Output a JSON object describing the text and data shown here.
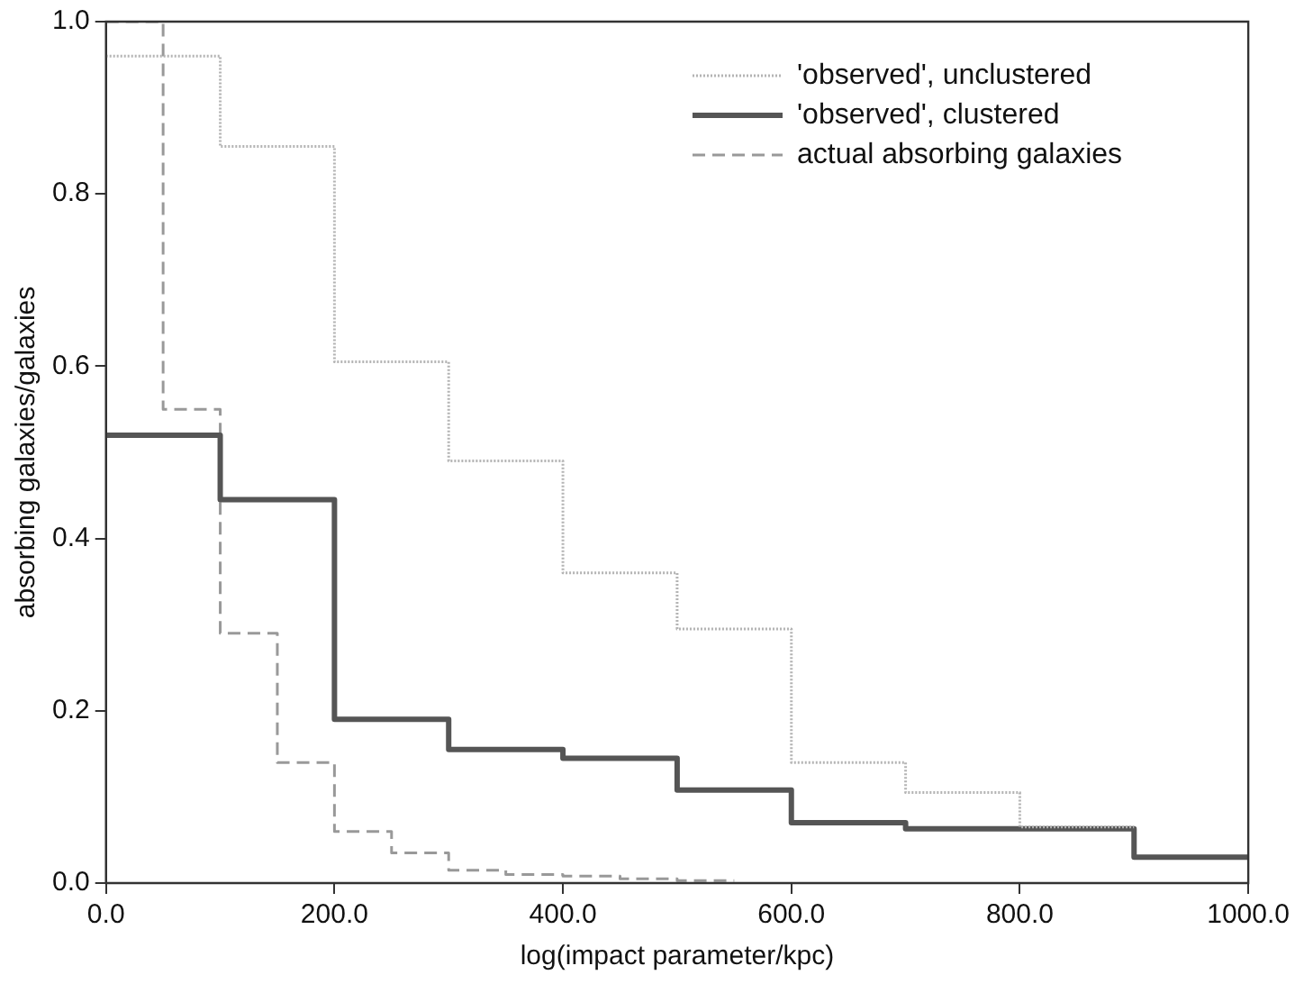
{
  "chart_data": {
    "type": "step",
    "xlabel": "log(impact parameter/kpc)",
    "ylabel": "absorbing galaxies/galaxies",
    "xlim": [
      0,
      1000
    ],
    "ylim": [
      0,
      1
    ],
    "xticks": [
      {
        "value": 0,
        "label": "0.0"
      },
      {
        "value": 200,
        "label": "200.0"
      },
      {
        "value": 400,
        "label": "400.0"
      },
      {
        "value": 600,
        "label": "600.0"
      },
      {
        "value": 800,
        "label": "800.0"
      },
      {
        "value": 1000,
        "label": "1000.0"
      }
    ],
    "yticks": [
      {
        "value": 0,
        "label": "0.0"
      },
      {
        "value": 0.2,
        "label": "0.2"
      },
      {
        "value": 0.4,
        "label": "0.4"
      },
      {
        "value": 0.6,
        "label": "0.6"
      },
      {
        "value": 0.8,
        "label": "0.8"
      },
      {
        "value": 1,
        "label": "1.0"
      }
    ],
    "grid": false,
    "legend": "top right",
    "marker": "none",
    "series": [
      {
        "name": "'observed', unclustered",
        "color": "#b4b4b4",
        "line_style": "dotted",
        "x": [
          0,
          100,
          200,
          300,
          400,
          500,
          600,
          700,
          800,
          900
        ],
        "values": [
          0.96,
          0.855,
          0.605,
          0.49,
          0.36,
          0.295,
          0.14,
          0.105,
          0.065,
          0.065
        ]
      },
      {
        "name": "'observed', clustered",
        "color": "#555555",
        "line_style": "solid",
        "x": [
          0,
          100,
          200,
          300,
          400,
          500,
          600,
          700,
          800,
          900,
          1000
        ],
        "values": [
          0.52,
          0.445,
          0.19,
          0.155,
          0.145,
          0.108,
          0.07,
          0.063,
          0.063,
          0.03,
          0.03
        ]
      },
      {
        "name": "actual absorbing galaxies",
        "color": "#999999",
        "line_style": "dashed",
        "x": [
          0,
          50,
          100,
          150,
          200,
          250,
          300,
          350,
          400,
          450,
          500,
          550
        ],
        "values": [
          1.0,
          0.55,
          0.29,
          0.14,
          0.06,
          0.035,
          0.015,
          0.01,
          0.008,
          0.005,
          0.003,
          0.003
        ]
      }
    ]
  }
}
